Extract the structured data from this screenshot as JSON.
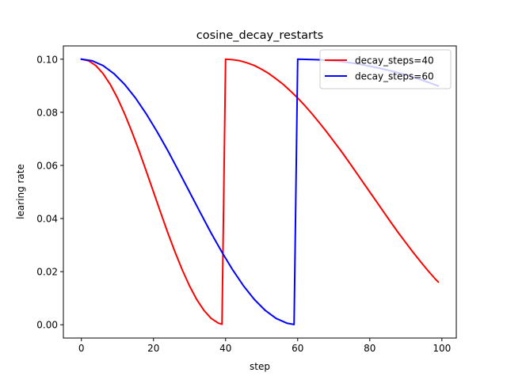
{
  "chart_data": {
    "type": "line",
    "title": "cosine_decay_restarts",
    "xlabel": "step",
    "ylabel": "learing rate",
    "xlim": [
      -5,
      104
    ],
    "ylim": [
      -0.005,
      0.105
    ],
    "xticks": [
      0,
      20,
      40,
      60,
      80,
      100
    ],
    "xtick_labels": [
      "0",
      "20",
      "40",
      "60",
      "80",
      "100"
    ],
    "yticks": [
      0.0,
      0.02,
      0.04,
      0.06,
      0.08,
      0.1
    ],
    "ytick_labels": [
      "0.00",
      "0.02",
      "0.04",
      "0.06",
      "0.08",
      "0.10"
    ],
    "grid": false,
    "legend_position": "top-right",
    "series": [
      {
        "name": "decay_steps=40",
        "color": "#ff0000",
        "x": [
          0,
          2,
          4,
          6,
          8,
          10,
          12,
          14,
          16,
          18,
          20,
          22,
          24,
          26,
          28,
          30,
          32,
          34,
          36,
          38,
          39,
          40,
          42,
          44,
          46,
          48,
          50,
          52,
          54,
          56,
          58,
          60,
          62,
          64,
          66,
          68,
          70,
          72,
          74,
          76,
          78,
          80,
          82,
          84,
          86,
          88,
          90,
          92,
          94,
          96,
          98,
          99
        ],
        "y": [
          0.1,
          0.0994,
          0.0976,
          0.0946,
          0.0905,
          0.0854,
          0.0794,
          0.0727,
          0.0655,
          0.0578,
          0.05,
          0.0422,
          0.0345,
          0.0273,
          0.0206,
          0.0146,
          0.0095,
          0.0054,
          0.0024,
          0.0006,
          0.0002,
          0.1,
          0.0998,
          0.0994,
          0.0986,
          0.0976,
          0.0962,
          0.0946,
          0.0926,
          0.0905,
          0.088,
          0.0854,
          0.0825,
          0.0794,
          0.0761,
          0.0727,
          0.0691,
          0.0655,
          0.0617,
          0.0578,
          0.0539,
          0.05,
          0.0461,
          0.0422,
          0.0383,
          0.0345,
          0.0309,
          0.0273,
          0.0239,
          0.0206,
          0.0175,
          0.0161
        ]
      },
      {
        "name": "decay_steps=60",
        "color": "#0000ff",
        "x": [
          0,
          3,
          6,
          9,
          12,
          15,
          18,
          21,
          24,
          27,
          30,
          33,
          36,
          39,
          42,
          45,
          48,
          51,
          54,
          57,
          59,
          60,
          63,
          66,
          69,
          72,
          75,
          78,
          81,
          84,
          87,
          90,
          93,
          96,
          99
        ],
        "y": [
          0.1,
          0.0994,
          0.0976,
          0.0946,
          0.0905,
          0.0854,
          0.0794,
          0.0727,
          0.0655,
          0.0578,
          0.05,
          0.0422,
          0.0345,
          0.0273,
          0.0206,
          0.0146,
          0.0095,
          0.0054,
          0.0024,
          0.0006,
          0.0001,
          0.1,
          0.0999,
          0.0998,
          0.0995,
          0.0991,
          0.0986,
          0.0979,
          0.0971,
          0.0962,
          0.0952,
          0.0941,
          0.0928,
          0.0914,
          0.0899
        ]
      }
    ]
  }
}
